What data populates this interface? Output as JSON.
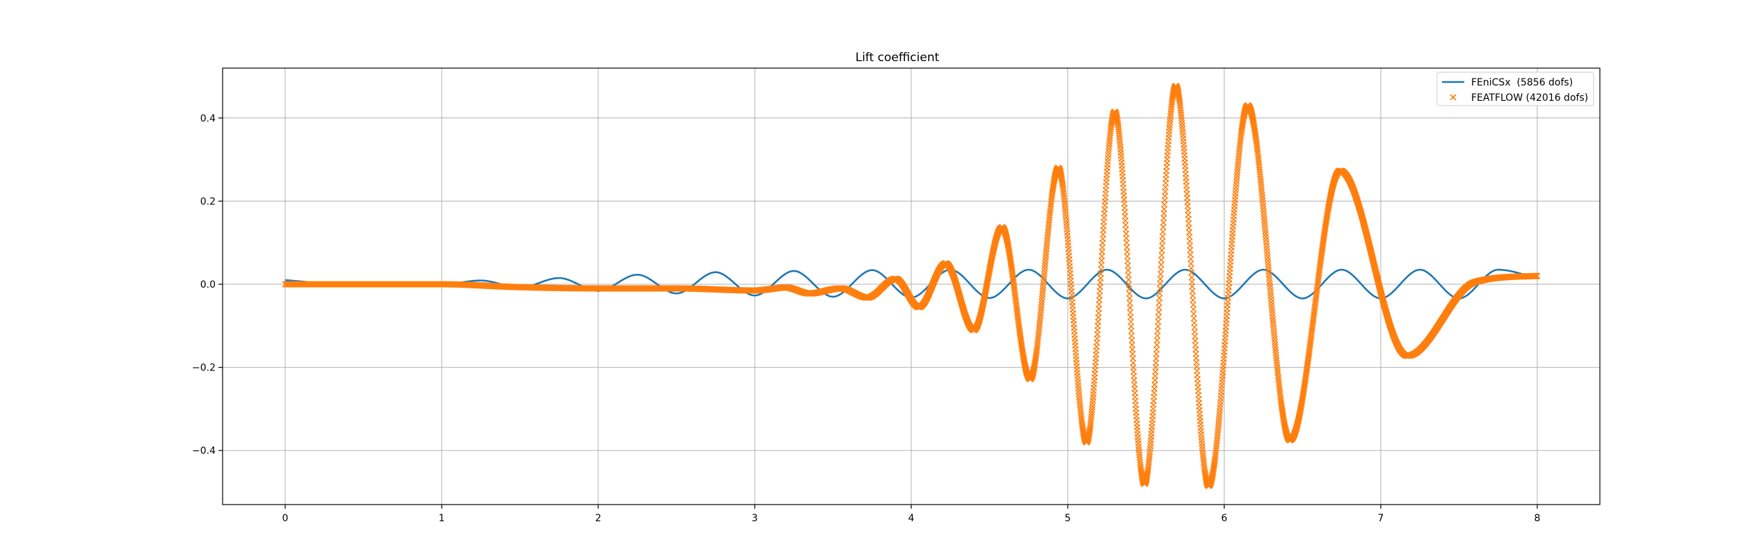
{
  "chart_data": {
    "type": "line",
    "title": "Lift coefficient",
    "xlabel": "",
    "ylabel": "",
    "xlim": [
      -0.4,
      8.4
    ],
    "ylim": [
      -0.53,
      0.52
    ],
    "x_ticks": [
      0,
      1,
      2,
      3,
      4,
      5,
      6,
      7,
      8
    ],
    "y_ticks": [
      -0.4,
      -0.2,
      0.0,
      0.2,
      0.4
    ],
    "x_tick_labels": [
      "0",
      "1",
      "2",
      "3",
      "4",
      "5",
      "6",
      "7",
      "8"
    ],
    "y_tick_labels": [
      "−0.4",
      "−0.2",
      "0.0",
      "0.2",
      "0.4"
    ],
    "grid": true,
    "legend_position": "upper right",
    "series": [
      {
        "name": "FEniCSx  (5856 dofs)",
        "color": "#1f77b4",
        "style": "line",
        "x": [
          0,
          0.25,
          0.5,
          0.75,
          1.0,
          1.25,
          1.5,
          1.75,
          2.0,
          2.25,
          2.5,
          2.75,
          3.0,
          3.25,
          3.5,
          3.75,
          4.0,
          4.25,
          4.5,
          4.75,
          5.0,
          5.25,
          5.5,
          5.75,
          6.0,
          6.25,
          6.5,
          6.75,
          7.0,
          7.25,
          7.5,
          7.75,
          8.0
        ],
        "y": [
          0.01,
          0.003,
          0.002,
          0.003,
          0.0,
          0.009,
          -0.008,
          0.015,
          -0.016,
          0.023,
          -0.022,
          0.029,
          -0.027,
          0.032,
          -0.03,
          0.034,
          -0.032,
          0.035,
          -0.033,
          0.035,
          -0.034,
          0.035,
          -0.034,
          0.035,
          -0.034,
          0.035,
          -0.034,
          0.035,
          -0.034,
          0.035,
          -0.034,
          0.035,
          0.015
        ]
      },
      {
        "name": "FEATFLOW (42016 dofs)",
        "color": "#ff7f0e",
        "style": "x-marker",
        "x": [
          0.0,
          1.0,
          1.5,
          2.0,
          2.5,
          3.0,
          3.2,
          3.35,
          3.55,
          3.72,
          3.9,
          4.05,
          4.22,
          4.4,
          4.58,
          4.76,
          4.94,
          5.12,
          5.3,
          5.49,
          5.69,
          5.9,
          6.15,
          6.42,
          6.74,
          7.17,
          7.6,
          8.0
        ],
        "y": [
          0.0,
          0.0,
          -0.007,
          -0.01,
          -0.01,
          -0.015,
          -0.008,
          -0.022,
          -0.01,
          -0.032,
          0.013,
          -0.055,
          0.05,
          -0.11,
          0.137,
          -0.228,
          0.28,
          -0.38,
          0.415,
          -0.48,
          0.477,
          -0.485,
          0.43,
          -0.375,
          0.273,
          -0.172,
          0.005,
          0.02
        ]
      }
    ]
  }
}
